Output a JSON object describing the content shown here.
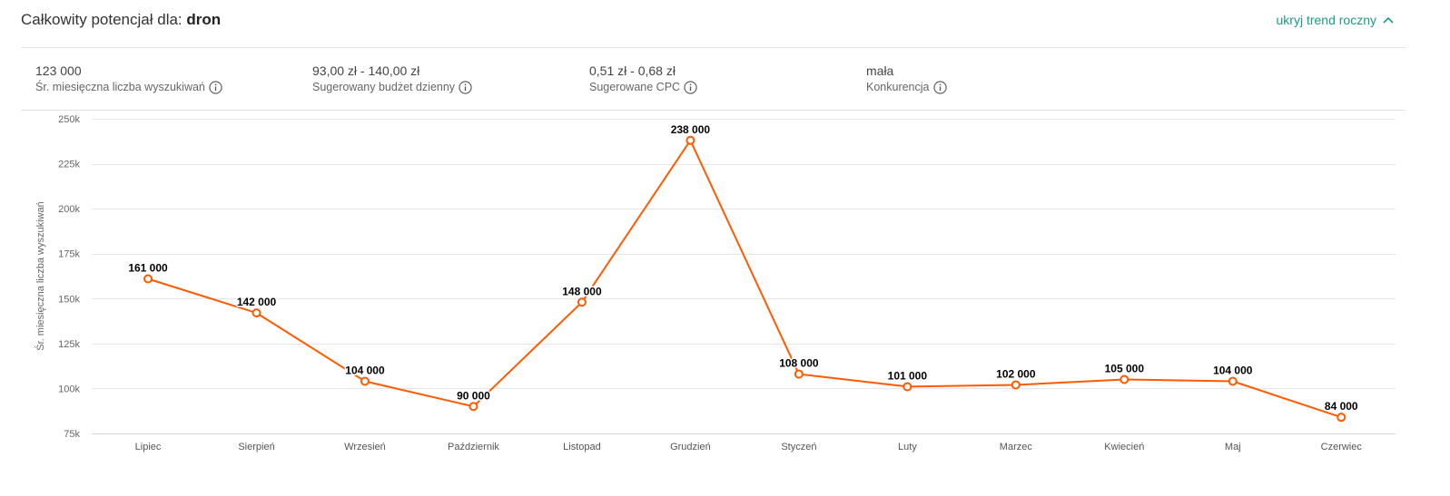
{
  "header": {
    "title_prefix": "Całkowity potencjał dla:",
    "keyword": "dron",
    "toggle_label": "ukryj trend roczny",
    "toggle_icon": "chevron-up-icon"
  },
  "stats": [
    {
      "value": "123 000",
      "label": "Śr. miesięczna liczba wyszukiwań",
      "icon": "info-icon"
    },
    {
      "value": "93,00 zł - 140,00 zł",
      "label": "Sugerowany budżet dzienny",
      "icon": "info-icon"
    },
    {
      "value": "0,51 zł - 0,68 zł",
      "label": "Sugerowane CPC",
      "icon": "info-icon"
    },
    {
      "value": "mała",
      "label": "Konkurencja",
      "icon": "info-icon"
    }
  ],
  "colors": {
    "accent": "#1b9a8a",
    "series_line": "#ff5a00",
    "grid": "#e6e6e6",
    "axis": "#ccd6eb"
  },
  "chart_data": {
    "type": "line",
    "categories": [
      "Lipiec",
      "Sierpień",
      "Wrzesień",
      "Październik",
      "Listopad",
      "Grudzień",
      "Styczeń",
      "Luty",
      "Marzec",
      "Kwiecień",
      "Maj",
      "Czerwiec"
    ],
    "values": [
      161000,
      142000,
      104000,
      90000,
      148000,
      238000,
      108000,
      101000,
      102000,
      105000,
      104000,
      84000
    ],
    "data_labels": [
      "161 000",
      "142 000",
      "104 000",
      "90 000",
      "148 000",
      "238 000",
      "108 000",
      "101 000",
      "102 000",
      "105 000",
      "104 000",
      "84 000"
    ],
    "ylabel": "Śr. miesięczna liczba wyszukiwań",
    "ylim": [
      75000,
      250000
    ],
    "y_ticks": [
      75000,
      100000,
      125000,
      150000,
      175000,
      200000,
      225000,
      250000
    ],
    "y_tick_labels": [
      "75k",
      "100k",
      "125k",
      "150k",
      "175k",
      "200k",
      "225k",
      "250k"
    ],
    "grid": true,
    "legend": "none"
  }
}
